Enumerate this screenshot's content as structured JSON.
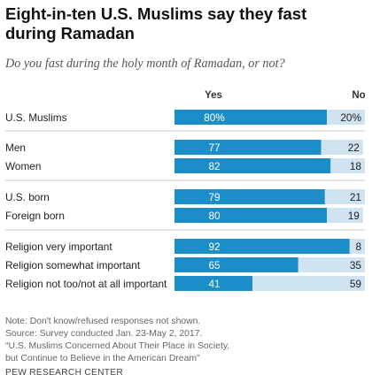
{
  "title": "Eight-in-ten U.S. Muslims say they fast during Ramadan",
  "subtitle": "Do you fast during the holy month of Ramadan, or not?",
  "colors": {
    "yes": "#1b8ec9",
    "no": "#cfe3f0",
    "divider": "#c8c8c8"
  },
  "chart_data": {
    "type": "bar",
    "orientation": "horizontal",
    "stacked": true,
    "legend": [
      "Yes",
      "No"
    ],
    "xlim": [
      0,
      100
    ],
    "categories": [
      "U.S. Muslims",
      "Men",
      "Women",
      "U.S. born",
      "Foreign born",
      "Religion very important",
      "Religion somewhat important",
      "Religion not too/not at all important"
    ],
    "groups": [
      [
        0
      ],
      [
        1,
        2
      ],
      [
        3,
        4
      ],
      [
        5,
        6,
        7
      ]
    ],
    "series": [
      {
        "name": "Yes",
        "values": [
          80,
          77,
          82,
          79,
          80,
          92,
          65,
          41
        ],
        "labels": [
          "80%",
          "77",
          "82",
          "79",
          "80",
          "92",
          "65",
          "41"
        ]
      },
      {
        "name": "No",
        "values": [
          20,
          22,
          18,
          21,
          19,
          8,
          35,
          59
        ],
        "labels": [
          "20%",
          "22",
          "18",
          "21",
          "19",
          "8",
          "35",
          "59"
        ]
      }
    ]
  },
  "notes": [
    "Note: Don't know/refused responses not shown.",
    "Source: Survey conducted Jan. 23-May 2, 2017.",
    "“U.S. Muslims Concerned About Their Place in Society,",
    "but Continue to Believe in the American Dream”"
  ],
  "source_org": "PEW RESEARCH CENTER"
}
